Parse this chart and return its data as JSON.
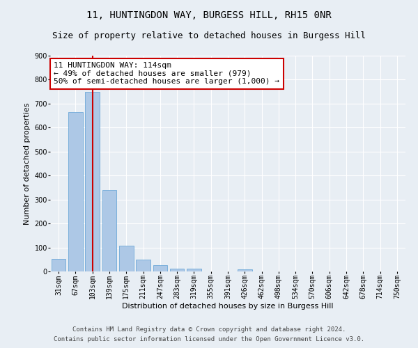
{
  "title_line1": "11, HUNTINGDON WAY, BURGESS HILL, RH15 0NR",
  "title_line2": "Size of property relative to detached houses in Burgess Hill",
  "xlabel": "Distribution of detached houses by size in Burgess Hill",
  "ylabel": "Number of detached properties",
  "bar_labels": [
    "31sqm",
    "67sqm",
    "103sqm",
    "139sqm",
    "175sqm",
    "211sqm",
    "247sqm",
    "283sqm",
    "319sqm",
    "355sqm",
    "391sqm",
    "426sqm",
    "462sqm",
    "498sqm",
    "534sqm",
    "570sqm",
    "606sqm",
    "642sqm",
    "678sqm",
    "714sqm",
    "750sqm"
  ],
  "bar_values": [
    52,
    665,
    750,
    340,
    108,
    50,
    25,
    12,
    12,
    0,
    0,
    8,
    0,
    0,
    0,
    0,
    0,
    0,
    0,
    0,
    0
  ],
  "bar_color": "#adc8e6",
  "bar_edge_color": "#5a9fd4",
  "property_line_x": 2.0,
  "property_line_color": "#cc0000",
  "annotation_text": "11 HUNTINGDON WAY: 114sqm\n← 49% of detached houses are smaller (979)\n50% of semi-detached houses are larger (1,000) →",
  "annotation_box_color": "#ffffff",
  "annotation_box_edge_color": "#cc0000",
  "ylim": [
    0,
    900
  ],
  "yticks": [
    0,
    100,
    200,
    300,
    400,
    500,
    600,
    700,
    800,
    900
  ],
  "footer_line1": "Contains HM Land Registry data © Crown copyright and database right 2024.",
  "footer_line2": "Contains public sector information licensed under the Open Government Licence v3.0.",
  "background_color": "#e8eef4",
  "grid_color": "#ffffff",
  "title_fontsize": 10,
  "subtitle_fontsize": 9,
  "axis_label_fontsize": 8,
  "tick_fontsize": 7,
  "annotation_fontsize": 8,
  "footer_fontsize": 6.5
}
